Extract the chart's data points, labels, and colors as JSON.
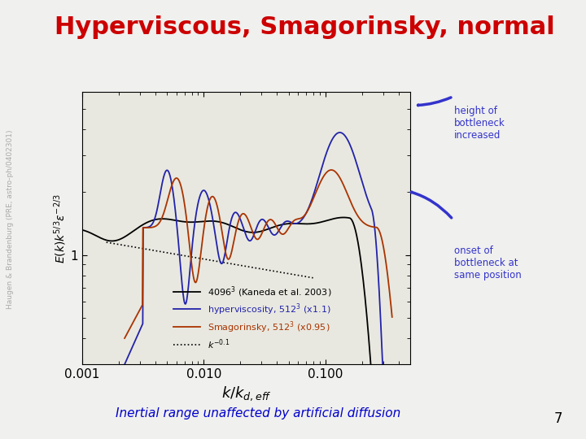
{
  "title": "Hyperviscous, Smagorinsky, normal",
  "title_color": "#cc0000",
  "title_fontsize": 22,
  "sidebar_text": "Haugen & Brandenburg (PRE, astro-ph/0402301)",
  "xlabel": "$k/k_{d,eff}$",
  "ylabel": "$E(k)k^{5/3}\\varepsilon^{-2/3}$",
  "subtitle": "Inertial range unaffected by artificial diffusion",
  "subtitle_color": "#0000cc",
  "page_number": "7",
  "annotation1": "height of\nbottleneck\nincreased",
  "annotation2": "onset of\nbottleneck at\nsame position",
  "annotation_color": "#3333cc",
  "legend_entries": [
    {
      "label": "4096$^3$ (Kaneda et al. 2003)",
      "color": "black",
      "ls": "-"
    },
    {
      "label": "hyperviscosity, 512$^3$ (x1.1)",
      "color": "#2222aa",
      "ls": "-"
    },
    {
      "label": "Smagorinsky, 512$^3$ (x0.95)",
      "color": "#aa3300",
      "ls": "-"
    },
    {
      "label": "$k^{-0.1}$",
      "color": "black",
      "ls": ":"
    }
  ],
  "background": "#f0f0ee",
  "plot_bg": "#e8e8e0"
}
